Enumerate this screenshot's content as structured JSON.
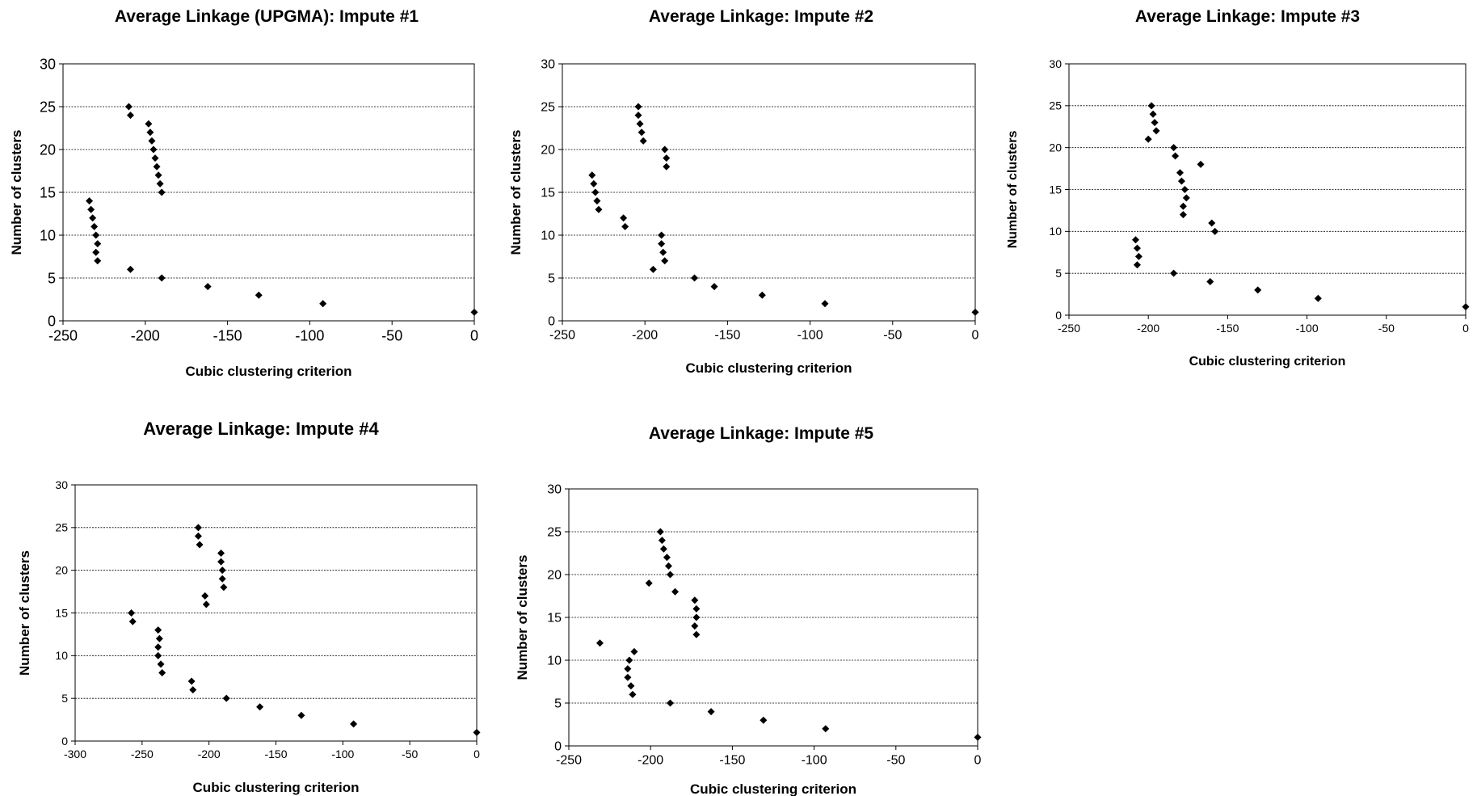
{
  "chart_data": [
    {
      "type": "scatter",
      "title": "Average Linkage (UPGMA): Impute #1",
      "xlabel": "Cubic clustering criterion",
      "ylabel": "Number of clusters",
      "xlim": [
        -250,
        0
      ],
      "ylim": [
        0,
        30
      ],
      "xticks": [
        -250,
        -200,
        -150,
        -100,
        -50,
        0
      ],
      "yticks": [
        0,
        5,
        10,
        15,
        20,
        25,
        30
      ],
      "grid": "horizontal",
      "marker_color": "#000000",
      "points": [
        {
          "x": -210,
          "y": 25
        },
        {
          "x": -209,
          "y": 24
        },
        {
          "x": -198,
          "y": 23
        },
        {
          "x": -197,
          "y": 22
        },
        {
          "x": -196,
          "y": 21
        },
        {
          "x": -195,
          "y": 20
        },
        {
          "x": -194,
          "y": 19
        },
        {
          "x": -193,
          "y": 18
        },
        {
          "x": -192,
          "y": 17
        },
        {
          "x": -191,
          "y": 16
        },
        {
          "x": -190,
          "y": 15
        },
        {
          "x": -234,
          "y": 14
        },
        {
          "x": -233,
          "y": 13
        },
        {
          "x": -232,
          "y": 12
        },
        {
          "x": -231,
          "y": 11
        },
        {
          "x": -230,
          "y": 10
        },
        {
          "x": -229,
          "y": 9
        },
        {
          "x": -230,
          "y": 8
        },
        {
          "x": -229,
          "y": 7
        },
        {
          "x": -209,
          "y": 6
        },
        {
          "x": -190,
          "y": 5
        },
        {
          "x": -162,
          "y": 4
        },
        {
          "x": -131,
          "y": 3
        },
        {
          "x": -92,
          "y": 2
        },
        {
          "x": 0,
          "y": 1
        }
      ]
    },
    {
      "type": "scatter",
      "title": "Average Linkage: Impute #2",
      "xlabel": "Cubic clustering criterion",
      "ylabel": "Number of clusters",
      "xlim": [
        -250,
        0
      ],
      "ylim": [
        0,
        30
      ],
      "xticks": [
        -250,
        -200,
        -150,
        -100,
        -50,
        0
      ],
      "yticks": [
        0,
        5,
        10,
        15,
        20,
        25,
        30
      ],
      "grid": "horizontal",
      "marker_color": "#000000",
      "points": [
        {
          "x": -204,
          "y": 25
        },
        {
          "x": -204,
          "y": 24
        },
        {
          "x": -203,
          "y": 23
        },
        {
          "x": -202,
          "y": 22
        },
        {
          "x": -201,
          "y": 21
        },
        {
          "x": -188,
          "y": 20
        },
        {
          "x": -187,
          "y": 19
        },
        {
          "x": -187,
          "y": 18
        },
        {
          "x": -232,
          "y": 17
        },
        {
          "x": -231,
          "y": 16
        },
        {
          "x": -230,
          "y": 15
        },
        {
          "x": -229,
          "y": 14
        },
        {
          "x": -228,
          "y": 13
        },
        {
          "x": -213,
          "y": 12
        },
        {
          "x": -212,
          "y": 11
        },
        {
          "x": -190,
          "y": 10
        },
        {
          "x": -190,
          "y": 9
        },
        {
          "x": -189,
          "y": 8
        },
        {
          "x": -188,
          "y": 7
        },
        {
          "x": -195,
          "y": 6
        },
        {
          "x": -170,
          "y": 5
        },
        {
          "x": -158,
          "y": 4
        },
        {
          "x": -129,
          "y": 3
        },
        {
          "x": -91,
          "y": 2
        },
        {
          "x": 0,
          "y": 1
        }
      ]
    },
    {
      "type": "scatter",
      "title": "Average Linkage: Impute #3",
      "xlabel": "Cubic clustering criterion",
      "ylabel": "Number of clusters",
      "xlim": [
        -250,
        0
      ],
      "ylim": [
        0,
        30
      ],
      "xticks": [
        -250,
        -200,
        -150,
        -100,
        -50,
        0
      ],
      "yticks": [
        0,
        5,
        10,
        15,
        20,
        25,
        30
      ],
      "grid": "horizontal",
      "marker_color": "#000000",
      "points": [
        {
          "x": -198,
          "y": 25
        },
        {
          "x": -197,
          "y": 24
        },
        {
          "x": -196,
          "y": 23
        },
        {
          "x": -195,
          "y": 22
        },
        {
          "x": -200,
          "y": 21
        },
        {
          "x": -184,
          "y": 20
        },
        {
          "x": -183,
          "y": 19
        },
        {
          "x": -167,
          "y": 18
        },
        {
          "x": -180,
          "y": 17
        },
        {
          "x": -179,
          "y": 16
        },
        {
          "x": -177,
          "y": 15
        },
        {
          "x": -176,
          "y": 14
        },
        {
          "x": -178,
          "y": 13
        },
        {
          "x": -178,
          "y": 12
        },
        {
          "x": -160,
          "y": 11
        },
        {
          "x": -158,
          "y": 10
        },
        {
          "x": -208,
          "y": 9
        },
        {
          "x": -207,
          "y": 8
        },
        {
          "x": -206,
          "y": 7
        },
        {
          "x": -207,
          "y": 6
        },
        {
          "x": -184,
          "y": 5
        },
        {
          "x": -161,
          "y": 4
        },
        {
          "x": -131,
          "y": 3
        },
        {
          "x": -93,
          "y": 2
        },
        {
          "x": 0,
          "y": 1
        }
      ]
    },
    {
      "type": "scatter",
      "title": "Average Linkage: Impute #4",
      "xlabel": "Cubic clustering criterion",
      "ylabel": "Number of clusters",
      "xlim": [
        -300,
        0
      ],
      "ylim": [
        0,
        30
      ],
      "xticks": [
        -300,
        -250,
        -200,
        -150,
        -100,
        -50,
        0
      ],
      "yticks": [
        0,
        5,
        10,
        15,
        20,
        25,
        30
      ],
      "grid": "horizontal",
      "marker_color": "#000000",
      "points": [
        {
          "x": -208,
          "y": 25
        },
        {
          "x": -208,
          "y": 24
        },
        {
          "x": -207,
          "y": 23
        },
        {
          "x": -191,
          "y": 22
        },
        {
          "x": -191,
          "y": 21
        },
        {
          "x": -190,
          "y": 20
        },
        {
          "x": -190,
          "y": 19
        },
        {
          "x": -189,
          "y": 18
        },
        {
          "x": -203,
          "y": 17
        },
        {
          "x": -202,
          "y": 16
        },
        {
          "x": -258,
          "y": 15
        },
        {
          "x": -257,
          "y": 14
        },
        {
          "x": -238,
          "y": 13
        },
        {
          "x": -237,
          "y": 12
        },
        {
          "x": -238,
          "y": 11
        },
        {
          "x": -238,
          "y": 10
        },
        {
          "x": -236,
          "y": 9
        },
        {
          "x": -235,
          "y": 8
        },
        {
          "x": -213,
          "y": 7
        },
        {
          "x": -212,
          "y": 6
        },
        {
          "x": -187,
          "y": 5
        },
        {
          "x": -162,
          "y": 4
        },
        {
          "x": -131,
          "y": 3
        },
        {
          "x": -92,
          "y": 2
        },
        {
          "x": 0,
          "y": 1
        }
      ]
    },
    {
      "type": "scatter",
      "title": "Average Linkage: Impute #5",
      "xlabel": "Cubic clustering criterion",
      "ylabel": "Number of clusters",
      "xlim": [
        -250,
        0
      ],
      "ylim": [
        0,
        30
      ],
      "xticks": [
        -250,
        -200,
        -150,
        -100,
        -50,
        0
      ],
      "yticks": [
        0,
        5,
        10,
        15,
        20,
        25,
        30
      ],
      "grid": "horizontal",
      "marker_color": "#000000",
      "points": [
        {
          "x": -194,
          "y": 25
        },
        {
          "x": -193,
          "y": 24
        },
        {
          "x": -192,
          "y": 23
        },
        {
          "x": -190,
          "y": 22
        },
        {
          "x": -189,
          "y": 21
        },
        {
          "x": -188,
          "y": 20
        },
        {
          "x": -201,
          "y": 19
        },
        {
          "x": -185,
          "y": 18
        },
        {
          "x": -173,
          "y": 17
        },
        {
          "x": -172,
          "y": 16
        },
        {
          "x": -172,
          "y": 15
        },
        {
          "x": -173,
          "y": 14
        },
        {
          "x": -172,
          "y": 13
        },
        {
          "x": -231,
          "y": 12
        },
        {
          "x": -210,
          "y": 11
        },
        {
          "x": -213,
          "y": 10
        },
        {
          "x": -214,
          "y": 9
        },
        {
          "x": -214,
          "y": 8
        },
        {
          "x": -212,
          "y": 7
        },
        {
          "x": -211,
          "y": 6
        },
        {
          "x": -188,
          "y": 5
        },
        {
          "x": -163,
          "y": 4
        },
        {
          "x": -131,
          "y": 3
        },
        {
          "x": -93,
          "y": 2
        },
        {
          "x": 0,
          "y": 1
        }
      ]
    }
  ]
}
